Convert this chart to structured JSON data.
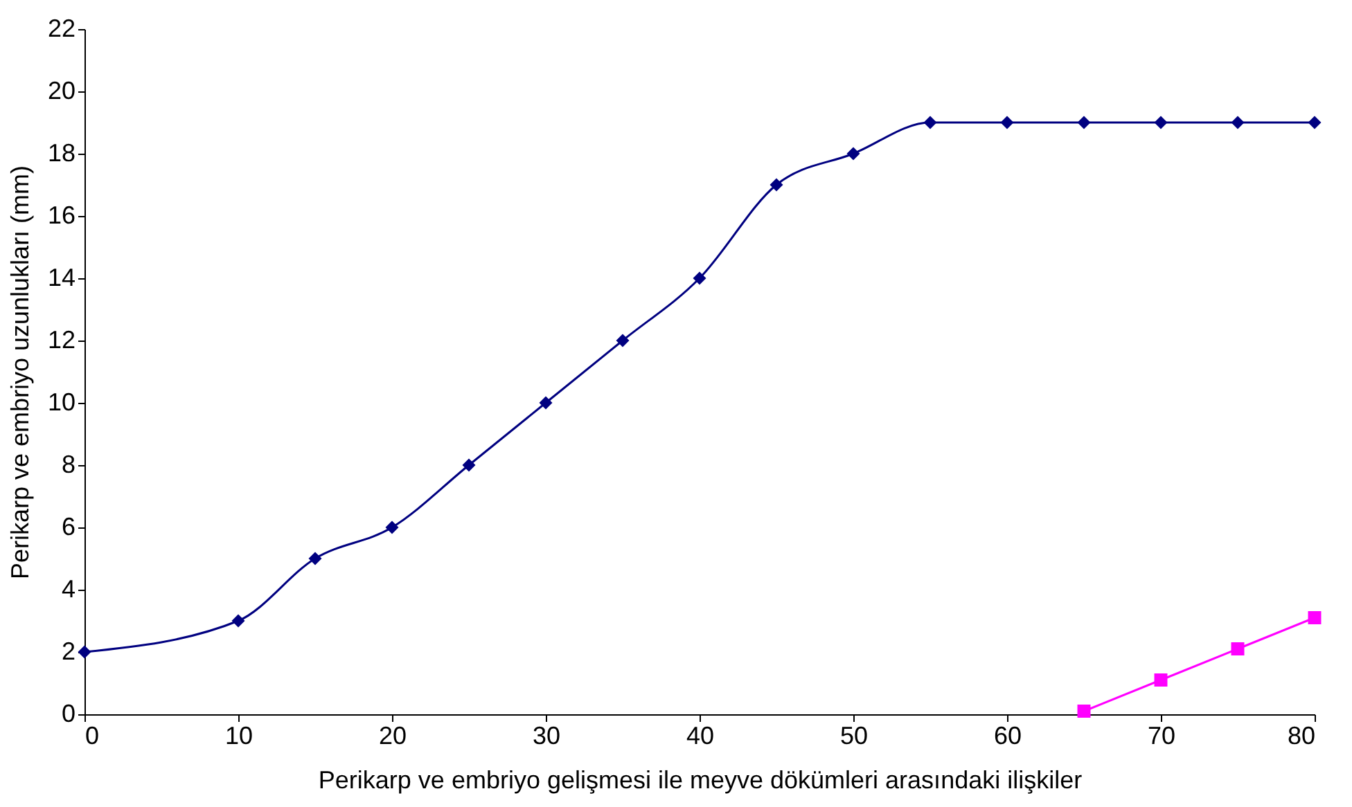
{
  "chart_data": {
    "type": "line",
    "xlabel": "Perikarp ve embriyo gelişmesi ile meyve dökümleri arasındaki ilişkiler",
    "ylabel": "Perikarp ve embriyo uzunlukları (mm)",
    "xlim": [
      0,
      80
    ],
    "xticks": [
      0,
      10,
      20,
      30,
      40,
      50,
      60,
      70,
      80
    ],
    "ylim": [
      0,
      22
    ],
    "yticks": [
      0,
      2,
      4,
      6,
      8,
      10,
      12,
      14,
      16,
      18,
      20,
      22
    ],
    "line_style": "solid",
    "series": [
      {
        "color": "#000080",
        "marker": "diamond",
        "x": [
          0,
          10,
          15,
          20,
          25,
          30,
          35,
          40,
          45,
          50,
          55,
          60,
          65,
          70,
          75,
          80
        ],
        "values": [
          2,
          3,
          5,
          6,
          8,
          10,
          12,
          14,
          17,
          18,
          19,
          19,
          19,
          19,
          19,
          19
        ]
      },
      {
        "color": "#ff00ff",
        "marker": "square",
        "x": [
          65,
          70,
          75,
          80
        ],
        "values": [
          0.1,
          1.1,
          2.1,
          3.1
        ]
      }
    ]
  }
}
